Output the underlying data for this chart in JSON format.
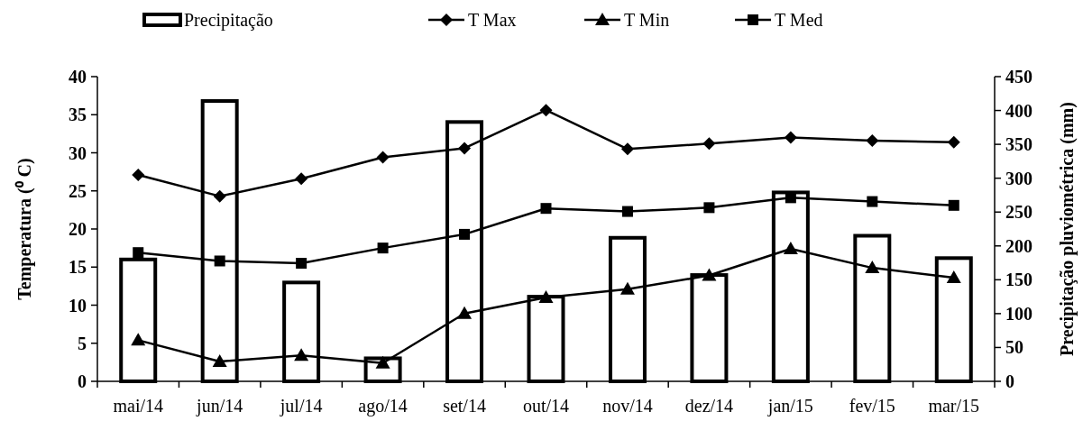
{
  "chart_data": {
    "type": "line",
    "categories": [
      "mai/14",
      "jun/14",
      "jul/14",
      "ago/14",
      "set/14",
      "out/14",
      "nov/14",
      "dez/14",
      "jan/15",
      "fev/15",
      "mar/15"
    ],
    "ylabel": "Temperatura  (⁰ C)",
    "y2label": "Precipitação pluviométrica (mm)",
    "ylim": [
      0,
      40
    ],
    "yticks": [
      0,
      5,
      10,
      15,
      20,
      25,
      30,
      35,
      40
    ],
    "y2lim": [
      0,
      450
    ],
    "y2ticks": [
      0,
      50,
      100,
      150,
      200,
      250,
      300,
      350,
      400,
      450
    ],
    "legend": "top",
    "grid": false,
    "series": [
      {
        "name": "Precipitação",
        "type": "bar",
        "axis": "y2",
        "color": "#ffffff",
        "values": [
          180,
          414,
          146,
          34,
          383,
          125,
          212,
          157,
          279,
          215,
          182
        ]
      },
      {
        "name": "T Max",
        "marker": "diamond",
        "color": "#000000",
        "values": [
          27.1,
          24.3,
          26.6,
          29.4,
          30.6,
          35.6,
          30.5,
          31.2,
          32.0,
          31.6,
          31.4
        ]
      },
      {
        "name": "T Min",
        "marker": "triangle",
        "color": "#000000",
        "values": [
          5.4,
          2.6,
          3.4,
          2.4,
          8.9,
          11.0,
          12.1,
          13.9,
          17.4,
          14.9,
          13.6
        ]
      },
      {
        "name": "T Med",
        "marker": "square",
        "color": "#000000",
        "values": [
          16.9,
          15.8,
          15.5,
          17.5,
          19.3,
          22.7,
          22.3,
          22.8,
          24.1,
          23.6,
          23.1
        ]
      }
    ]
  }
}
